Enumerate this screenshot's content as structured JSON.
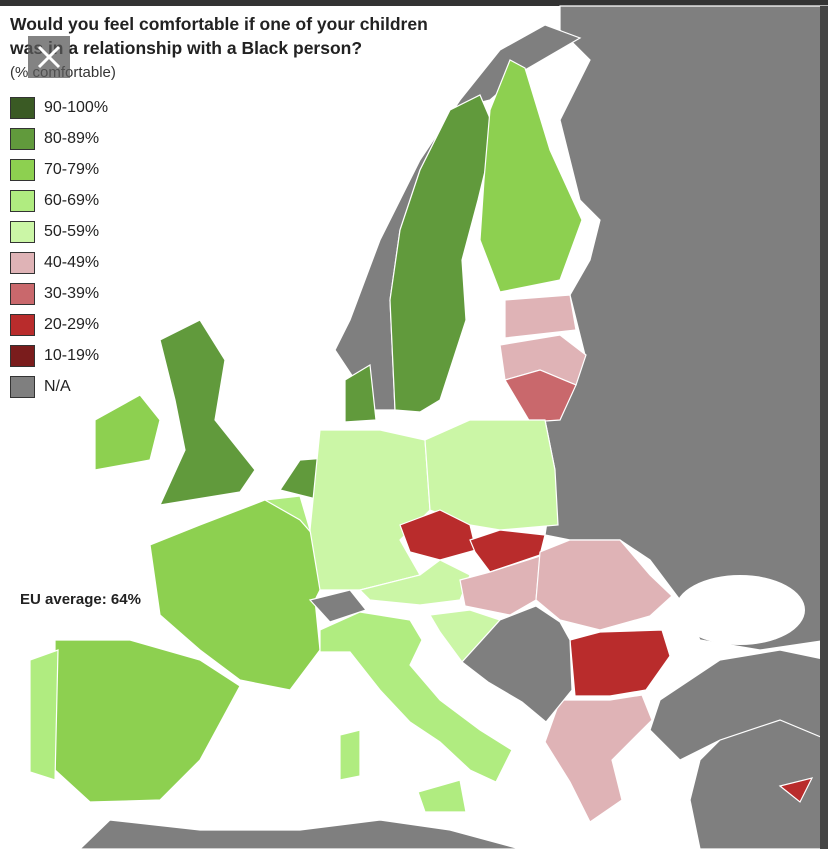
{
  "title": "Would you feel comfortable if one of your children was in a relationship with a Black person?",
  "subtitle": "(% comfortable)",
  "legend": [
    {
      "label": "90-100%",
      "color": "#3a5a24"
    },
    {
      "label": "80-89%",
      "color": "#619a3c"
    },
    {
      "label": "70-79%",
      "color": "#8dd050"
    },
    {
      "label": "60-69%",
      "color": "#b0ec80"
    },
    {
      "label": "50-59%",
      "color": "#cbf6a6"
    },
    {
      "label": "40-49%",
      "color": "#dfb3b6"
    },
    {
      "label": "30-39%",
      "color": "#c9686c"
    },
    {
      "label": "20-29%",
      "color": "#b92c2c"
    },
    {
      "label": "10-19%",
      "color": "#7a1c1c"
    },
    {
      "label": "N/A",
      "color": "#7f7f7f"
    }
  ],
  "annotation": "EU average: 64%"
}
